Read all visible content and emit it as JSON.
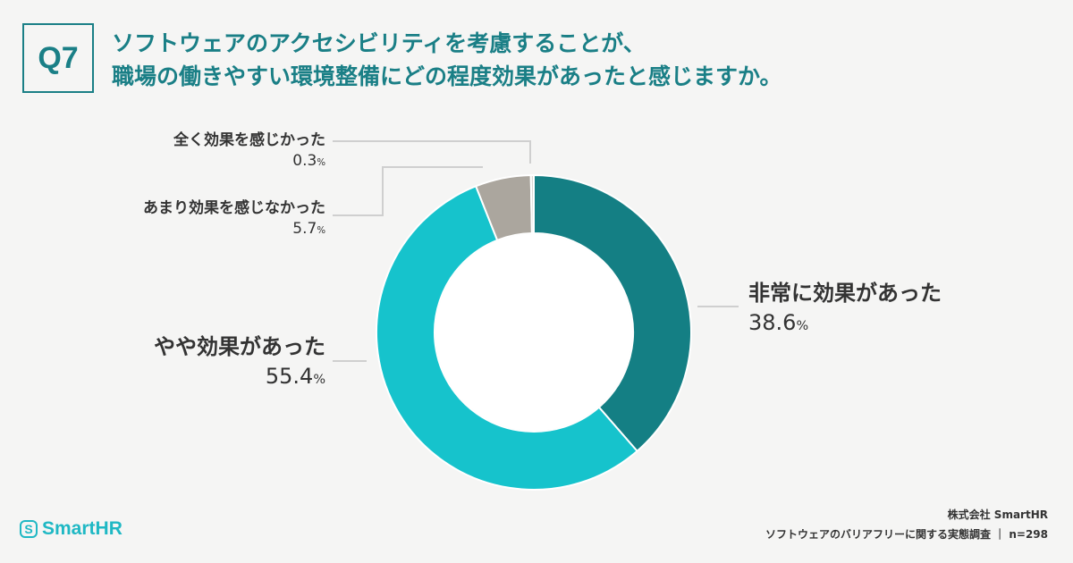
{
  "question": {
    "number": "Q7",
    "title_line1": "ソフトウェアのアクセシビリティを考慮することが、",
    "title_line2": "職場の働きやすい環境整備にどの程度効果があったと感じますか。"
  },
  "chart_data": {
    "type": "pie",
    "donut": true,
    "start": "top",
    "direction": "clockwise",
    "categories": [
      "非常に効果があった",
      "やや効果があった",
      "あまり効果を感じなかった",
      "全く効果を感じかった"
    ],
    "values": [
      38.6,
      55.4,
      5.7,
      0.3
    ],
    "unit": "%",
    "colors": [
      "#147f84",
      "#16c3cc",
      "#aba69e",
      "#d9d7d2"
    ],
    "labels": [
      {
        "name": "非常に効果があった",
        "value": "38.6"
      },
      {
        "name": "やや効果があった",
        "value": "55.4"
      },
      {
        "name": "あまり効果を感じなかった",
        "value": "5.7"
      },
      {
        "name": "全く効果を感じかった",
        "value": "0.3"
      }
    ]
  },
  "footer": {
    "logo_text": "SmartHR",
    "logo_icon": "smarthr-logo-icon",
    "company": "株式会社 SmartHR",
    "survey": "ソフトウェアのバリアフリーに関する実態調査",
    "sample": "n=298"
  }
}
